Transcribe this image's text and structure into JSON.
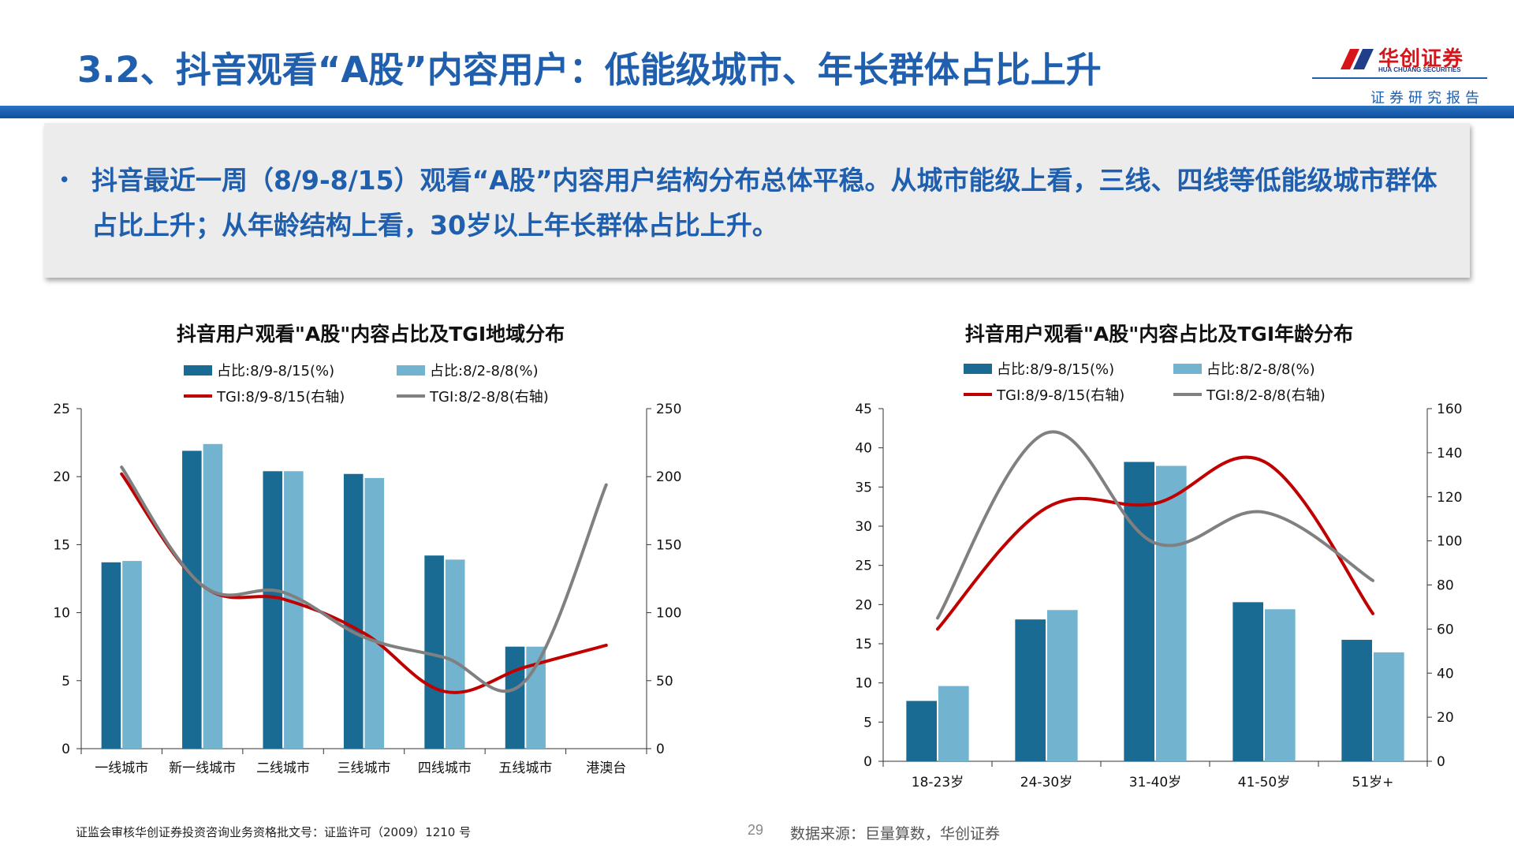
{
  "header": {
    "title": "3.2、抖音观看“A股”内容用户：低能级城市、年长群体占比上升",
    "logo_cn": "华创证券",
    "logo_en": "HUA CHUANG SECURITIES",
    "logo_sub": "证券研究报告"
  },
  "summary": {
    "bullet": "•",
    "text": "抖音最近一周（8/9-8/15）观看“A股”内容用户结构分布总体平稳。从城市能级上看，三线、四线等低能级城市群体占比上升；从年龄结构上看，30岁以上年长群体占比上升。"
  },
  "colors": {
    "brand_blue": "#1f5fae",
    "bar_current": "#1a6b93",
    "bar_previous": "#72b3d0",
    "tgi_current": "#c00000",
    "tgi_previous": "#808080"
  },
  "chart_data": [
    {
      "type": "bar",
      "title": "抖音用户观看\"A股\"内容占比及TGI地域分布",
      "categories": [
        "一线城市",
        "新一线城市",
        "二线城市",
        "三线城市",
        "四线城市",
        "五线城市",
        "港澳台"
      ],
      "series": [
        {
          "name": "占比:8/9-8/15(%)",
          "type": "bar",
          "axis": "left",
          "values": [
            13.7,
            21.9,
            20.4,
            20.2,
            14.2,
            7.5,
            0
          ]
        },
        {
          "name": "占比:8/2-8/8(%)",
          "type": "bar",
          "axis": "left",
          "values": [
            13.8,
            22.4,
            20.4,
            19.9,
            13.9,
            7.5,
            0
          ]
        },
        {
          "name": "TGI:8/9-8/15(右轴)",
          "type": "line",
          "axis": "right",
          "values": [
            202,
            120,
            110,
            85,
            42,
            60,
            76
          ]
        },
        {
          "name": "TGI:8/2-8/8(右轴)",
          "type": "line",
          "axis": "right",
          "values": [
            207,
            120,
            115,
            82,
            67,
            50,
            194
          ]
        }
      ],
      "y_left": {
        "min": 0,
        "max": 25,
        "ticks": [
          0,
          5,
          10,
          15,
          20,
          25
        ]
      },
      "y_right": {
        "min": 0,
        "max": 250,
        "ticks": [
          0,
          50,
          100,
          150,
          200,
          250
        ]
      },
      "grid": false,
      "legend_position": "top"
    },
    {
      "type": "bar",
      "title": "抖音用户观看\"A股\"内容占比及TGI年龄分布",
      "categories": [
        "18-23岁",
        "24-30岁",
        "31-40岁",
        "41-50岁",
        "51岁+"
      ],
      "series": [
        {
          "name": "占比:8/9-8/15(%)",
          "type": "bar",
          "axis": "left",
          "values": [
            7.7,
            18.1,
            38.2,
            20.3,
            15.5
          ]
        },
        {
          "name": "占比:8/2-8/8(%)",
          "type": "bar",
          "axis": "left",
          "values": [
            9.6,
            19.3,
            37.7,
            19.4,
            13.9
          ]
        },
        {
          "name": "TGI:8/9-8/15(右轴)",
          "type": "line",
          "axis": "right",
          "values": [
            60,
            115,
            117,
            136,
            67
          ]
        },
        {
          "name": "TGI:8/2-8/8(右轴)",
          "type": "line",
          "axis": "right",
          "values": [
            65,
            149,
            99,
            113,
            82
          ]
        }
      ],
      "y_left": {
        "min": 0,
        "max": 45,
        "ticks": [
          0,
          5,
          10,
          15,
          20,
          25,
          30,
          35,
          40,
          45
        ]
      },
      "y_right": {
        "min": 0,
        "max": 160,
        "ticks": [
          0,
          20,
          40,
          60,
          80,
          100,
          120,
          140,
          160
        ]
      },
      "grid": false,
      "legend_position": "top"
    }
  ],
  "footer": {
    "license": "证监会审核华创证券投资咨询业务资格批文号：证监许可（2009）1210 号",
    "page": "29",
    "source": "数据来源：巨量算数，华创证券"
  }
}
